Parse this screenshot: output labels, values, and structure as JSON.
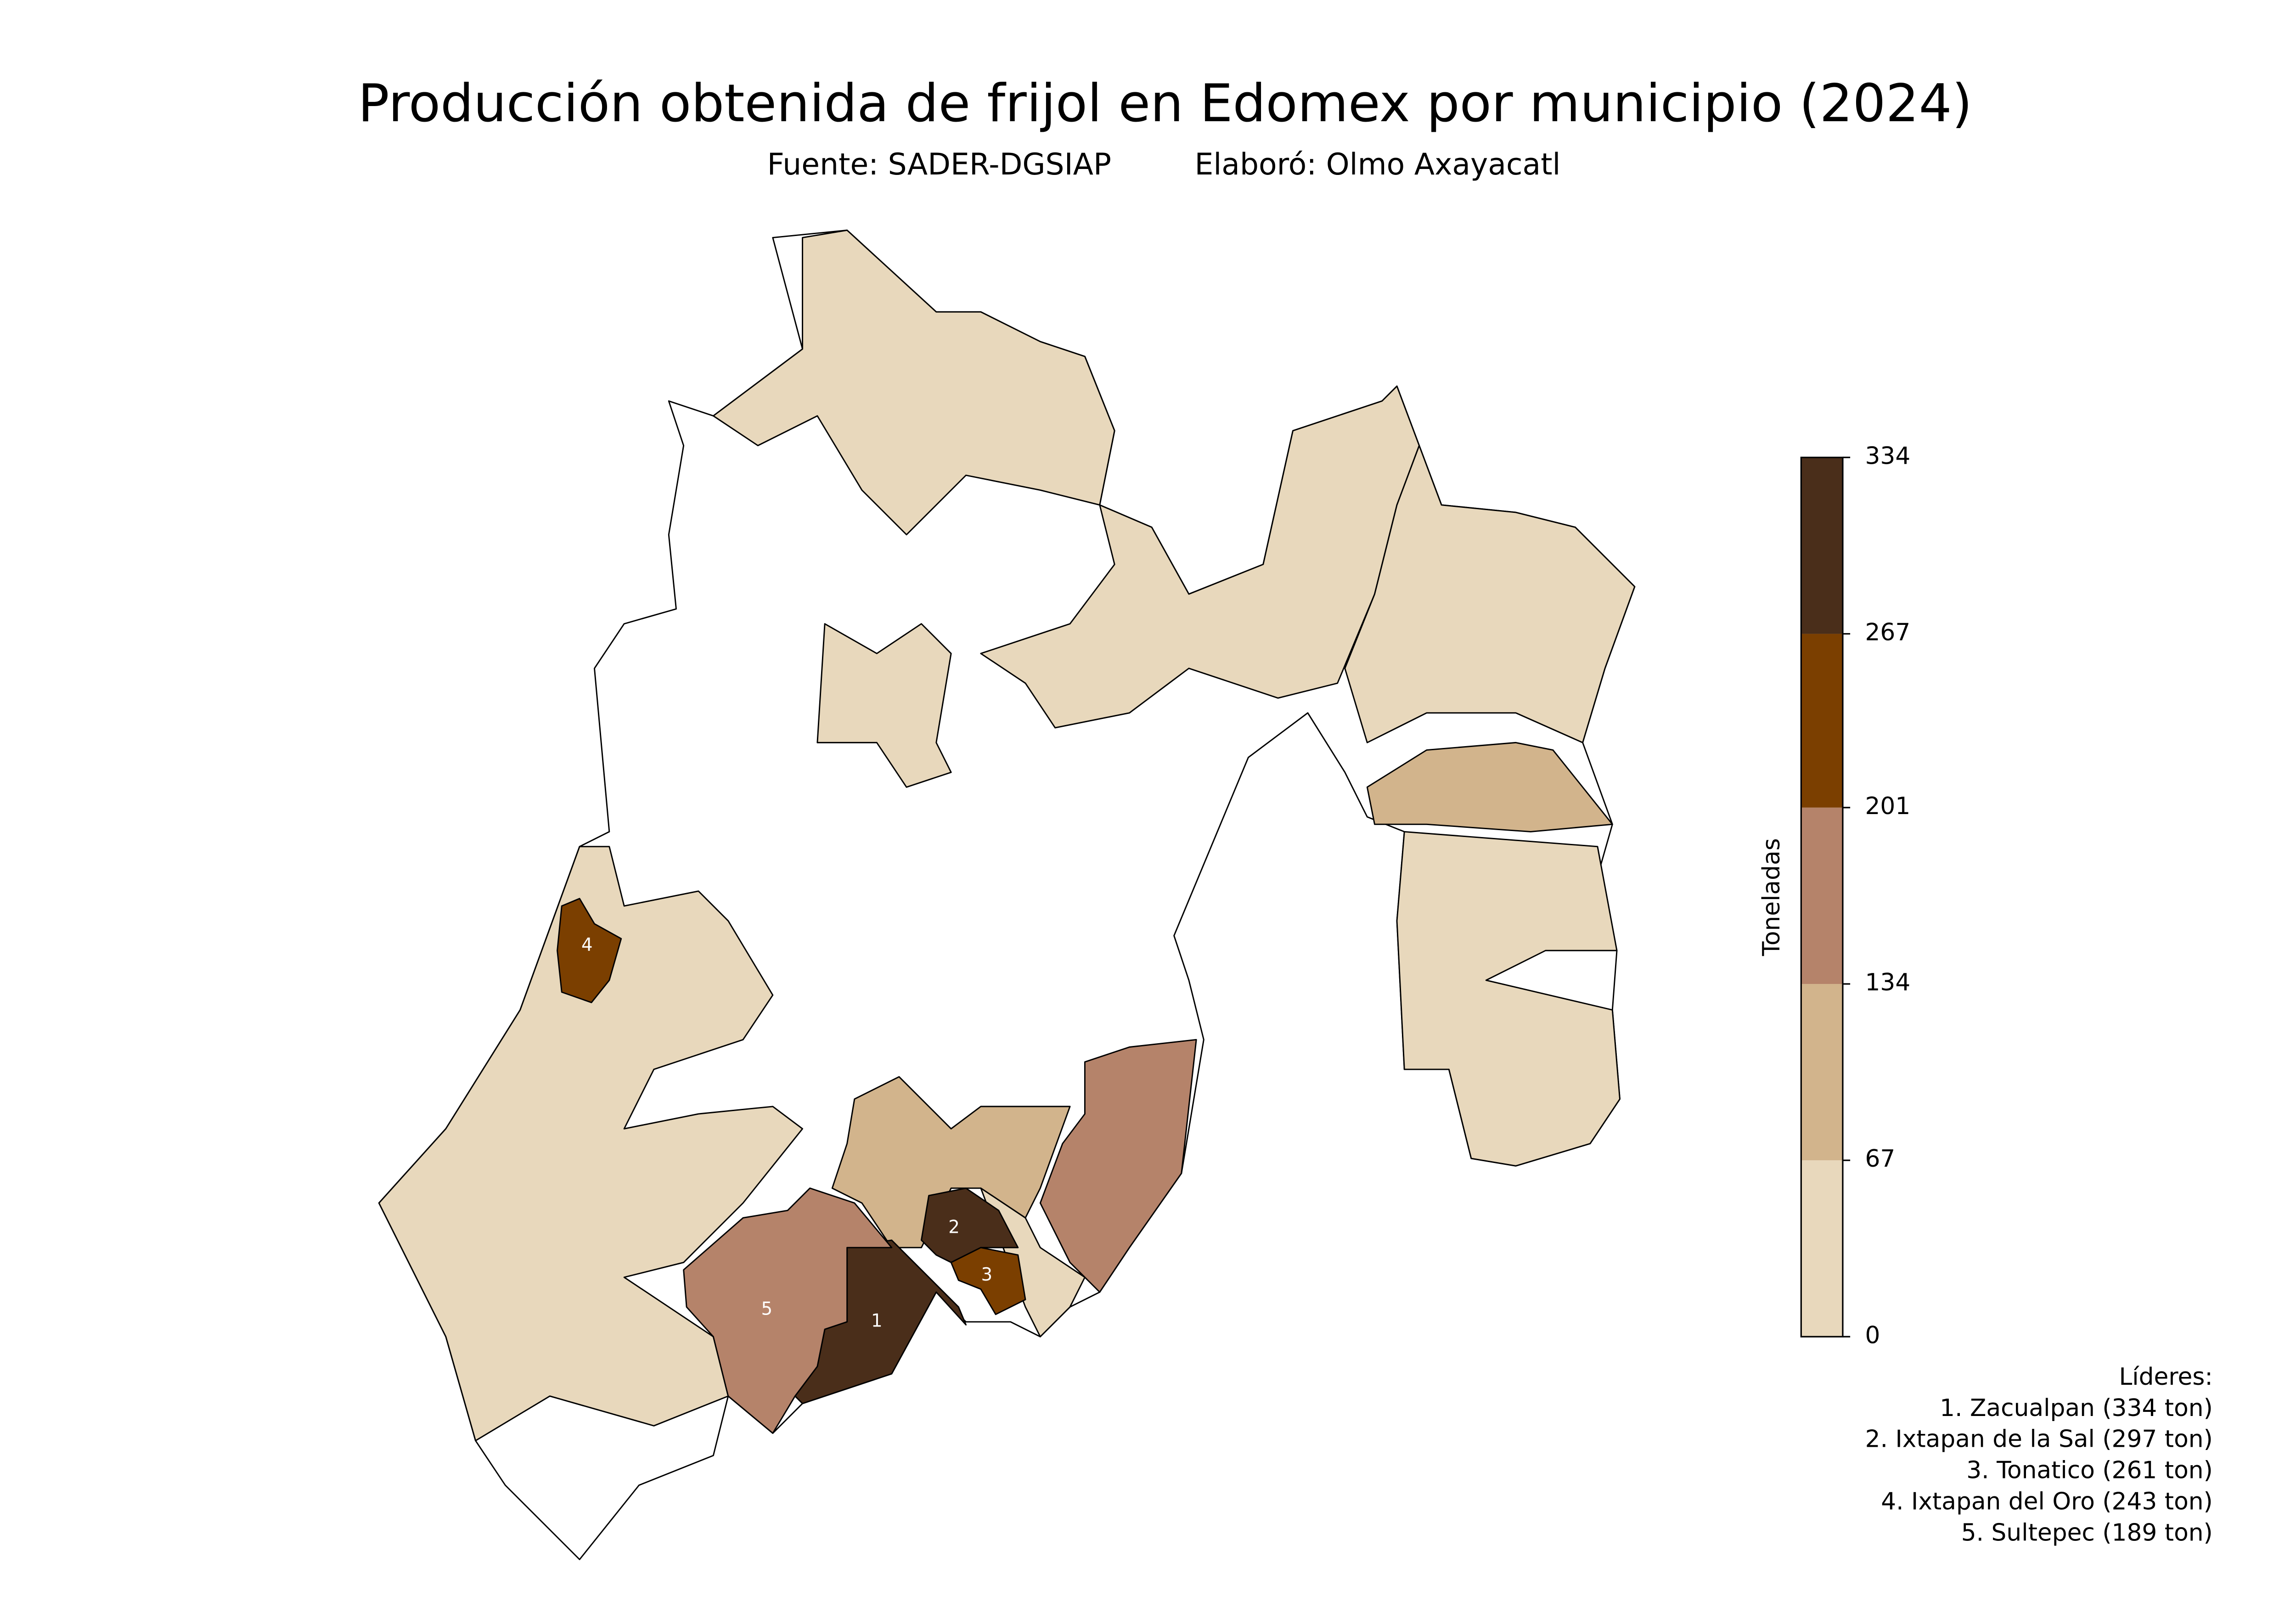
{
  "map": {
    "title": "Producción obtenida de frijol en Edomex por municipio (2024)",
    "source": "Fuente: SADER-DGSIAP",
    "author": "Elaboró: Olmo Axayacatl",
    "colorbar": {
      "label": "Toneladas",
      "lim": [
        0,
        334
      ],
      "ticks": [
        0,
        67,
        134,
        201,
        267,
        334
      ],
      "colors": [
        "#e8d8bc",
        "#d2b48c",
        "#b5836a",
        "#7b3f00",
        "#4a2e1a"
      ]
    },
    "leaders": {
      "title": "Líderes:",
      "items": [
        {
          "rank": 1,
          "value": 334,
          "label": "1. Zacualpan (334 ton)"
        },
        {
          "rank": 2,
          "value": 297,
          "label": "2. Ixtapan de la Sal (297 ton)"
        },
        {
          "rank": 3,
          "value": 261,
          "label": "3. Tonatico (261 ton)"
        },
        {
          "rank": 4,
          "value": 243,
          "label": "4. Ixtapan del Oro (243 ton)"
        },
        {
          "rank": 5,
          "value": 189,
          "label": "5. Sultepec (189 ton)"
        }
      ]
    }
  }
}
